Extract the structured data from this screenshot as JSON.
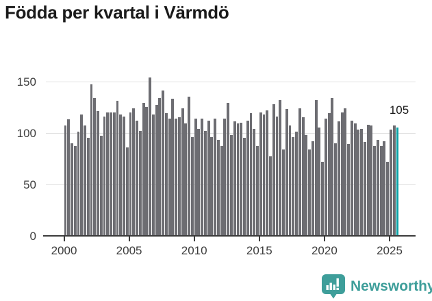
{
  "title": "Födda per kvartal i Värmdö",
  "annotation": {
    "value": "105"
  },
  "footer": {
    "brand": "Newsworthy"
  },
  "colors": {
    "bg": "#ffffff",
    "bar": "#6d6d72",
    "highlight": "#0aa2a6",
    "title": "#1a1a1a",
    "axis": "#3b3b3b",
    "grid": "#e0e0e0",
    "label": "#3c3c3c",
    "logo": "#3e9e9a"
  },
  "chart_data": {
    "type": "bar",
    "title": "Födda per kvartal i Värmdö",
    "x_unit": "quarter",
    "xlabel": "",
    "ylabel": "",
    "ylim": [
      0,
      155
    ],
    "yticks": [
      0,
      50,
      100,
      150
    ],
    "xticks": [
      2000,
      2005,
      2010,
      2015,
      2020,
      2025
    ],
    "grid": "horizontal",
    "legend": "none",
    "highlight_index": 102,
    "highlight_label": "105",
    "quarters": [
      "2000K1",
      "2000K2",
      "2000K3",
      "2000K4",
      "2001K1",
      "2001K2",
      "2001K3",
      "2001K4",
      "2002K1",
      "2002K2",
      "2002K3",
      "2002K4",
      "2003K1",
      "2003K2",
      "2003K3",
      "2003K4",
      "2004K1",
      "2004K2",
      "2004K3",
      "2004K4",
      "2005K1",
      "2005K2",
      "2005K3",
      "2005K4",
      "2006K1",
      "2006K2",
      "2006K3",
      "2006K4",
      "2007K1",
      "2007K2",
      "2007K3",
      "2007K4",
      "2008K1",
      "2008K2",
      "2008K3",
      "2008K4",
      "2009K1",
      "2009K2",
      "2009K3",
      "2009K4",
      "2010K1",
      "2010K2",
      "2010K3",
      "2010K4",
      "2011K1",
      "2011K2",
      "2011K3",
      "2011K4",
      "2012K1",
      "2012K2",
      "2012K3",
      "2012K4",
      "2013K1",
      "2013K2",
      "2013K3",
      "2013K4",
      "2014K1",
      "2014K2",
      "2014K3",
      "2014K4",
      "2015K1",
      "2015K2",
      "2015K3",
      "2015K4",
      "2016K1",
      "2016K2",
      "2016K3",
      "2016K4",
      "2017K1",
      "2017K2",
      "2017K3",
      "2017K4",
      "2018K1",
      "2018K2",
      "2018K3",
      "2018K4",
      "2019K1",
      "2019K2",
      "2019K3",
      "2019K4",
      "2020K1",
      "2020K2",
      "2020K3",
      "2020K4",
      "2021K1",
      "2021K2",
      "2021K3",
      "2021K4",
      "2022K1",
      "2022K2",
      "2022K3",
      "2022K4",
      "2023K1",
      "2023K2",
      "2023K3",
      "2023K4",
      "2024K1",
      "2024K2",
      "2024K3",
      "2024K4",
      "2025K1",
      "2025K2",
      "2025K3"
    ],
    "values": [
      107,
      113,
      90,
      87,
      101,
      118,
      107,
      95,
      147,
      134,
      121,
      97,
      116,
      120,
      120,
      120,
      131,
      118,
      116,
      86,
      120,
      124,
      112,
      102,
      129,
      125,
      154,
      118,
      127,
      134,
      141,
      119,
      114,
      133,
      114,
      115,
      124,
      109,
      135,
      96,
      114,
      104,
      114,
      102,
      112,
      96,
      114,
      93,
      87,
      114,
      129,
      98,
      111,
      109,
      110,
      95,
      112,
      119,
      104,
      87,
      120,
      118,
      122,
      77,
      128,
      116,
      132,
      84,
      123,
      107,
      96,
      101,
      124,
      115,
      98,
      84,
      92,
      132,
      105,
      72,
      114,
      119,
      134,
      90,
      111,
      120,
      124,
      89,
      112,
      109,
      103,
      104,
      91,
      108,
      107,
      87,
      93,
      87,
      92,
      72,
      103,
      107,
      105
    ]
  }
}
